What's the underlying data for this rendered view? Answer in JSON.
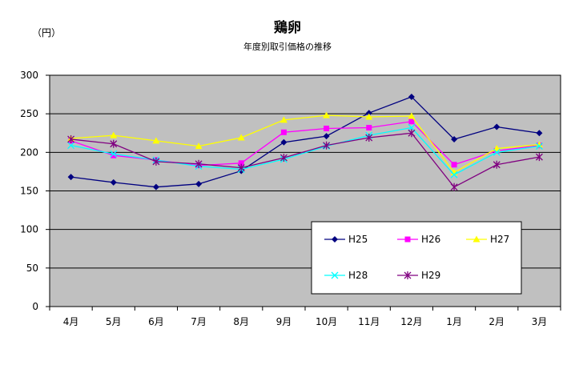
{
  "chart_data": {
    "type": "line",
    "title": "鶏卵",
    "subtitle": "年度別取引価格の推移",
    "ylabel": "（円）",
    "xlabel": "",
    "ylim": [
      0,
      300
    ],
    "yticks": [
      0,
      50,
      100,
      150,
      200,
      250,
      300
    ],
    "grid": true,
    "plot_background": "#c0c0c0",
    "legend_position": "inside-lower-right",
    "categories": [
      "4月",
      "5月",
      "6月",
      "7月",
      "8月",
      "9月",
      "10月",
      "11月",
      "12月",
      "1月",
      "2月",
      "3月"
    ],
    "series": [
      {
        "name": "H25",
        "color": "#000080",
        "marker": "diamond",
        "values": [
          168,
          161,
          155,
          159,
          176,
          213,
          221,
          251,
          272,
          217,
          233,
          225
        ]
      },
      {
        "name": "H26",
        "color": "#ff00ff",
        "marker": "square",
        "values": [
          215,
          196,
          190,
          183,
          186,
          226,
          231,
          232,
          240,
          184,
          202,
          209
        ]
      },
      {
        "name": "H27",
        "color": "#ffff00",
        "marker": "triangle",
        "values": [
          218,
          222,
          215,
          208,
          219,
          242,
          248,
          246,
          247,
          174,
          205,
          210
        ]
      },
      {
        "name": "H28",
        "color": "#00ffff",
        "marker": "x",
        "values": [
          209,
          198,
          190,
          182,
          178,
          191,
          208,
          222,
          232,
          171,
          200,
          208
        ]
      },
      {
        "name": "H29",
        "color": "#800080",
        "marker": "asterisk",
        "values": [
          217,
          211,
          188,
          185,
          180,
          193,
          209,
          219,
          225,
          155,
          184,
          194
        ]
      }
    ]
  }
}
